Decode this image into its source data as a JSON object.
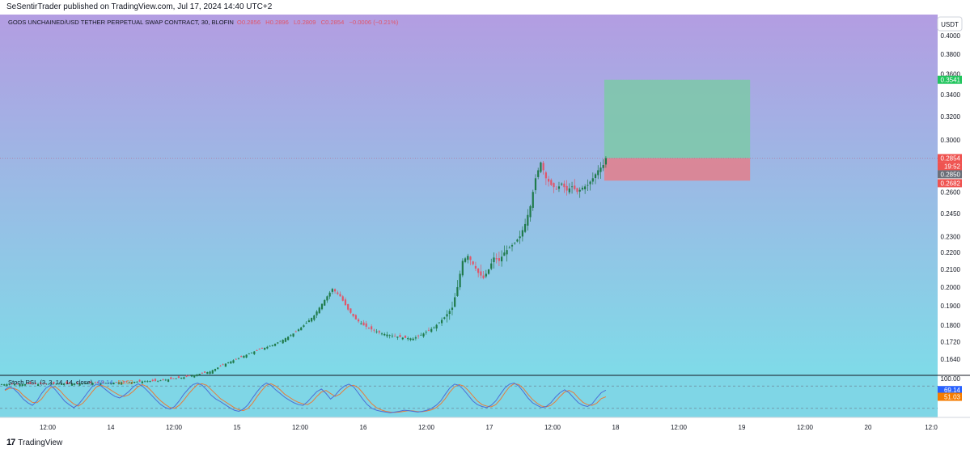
{
  "publisher_line": "SeSentirTrader published on TradingView.com, Jul 17, 2024 14:40 UTC+2",
  "footer": {
    "logo_glyph": "17",
    "brand": "TradingView"
  },
  "colors": {
    "bg_top": "#b39de2",
    "bg_bottom": "#7fdbe8",
    "candle_up": "#1f7a4a",
    "candle_down": "#e0566a",
    "profit_zone": "#7dc9a8",
    "loss_zone": "#e0828f",
    "price_line": "#b36b8e",
    "stoch_k": "#4a6fd8",
    "stoch_d": "#e87c3a",
    "tp_label_bg": "#22c55e",
    "price_label_bg": "#ef5350",
    "current_label_bg": "#6b6f78",
    "k_label_bg": "#2962ff",
    "d_label_bg": "#f57c00"
  },
  "chart_data": {
    "type": "candlestick",
    "header": {
      "symbol": "GODS UNCHAINED/USD TETHER PERPETUAL SWAP CONTRACT, 30, BLOFIN",
      "o": "O0.2856",
      "h": "H0.2896",
      "l": "L0.2809",
      "c": "C0.2854",
      "change": "−0.0006 (−0.21%)"
    },
    "currency_button": "USDT",
    "y_ticks": [
      "0.4000",
      "0.3800",
      "0.3600",
      "0.3400",
      "0.3200",
      "0.3000",
      "0.2800",
      "0.2600",
      "0.2450",
      "0.2300",
      "0.2200",
      "0.2100",
      "0.2000",
      "0.1900",
      "0.1800",
      "0.1720",
      "0.1640"
    ],
    "y_tick_values": [
      0.4,
      0.38,
      0.36,
      0.34,
      0.32,
      0.3,
      0.28,
      0.26,
      0.245,
      0.23,
      0.22,
      0.21,
      0.2,
      0.19,
      0.18,
      0.172,
      0.164
    ],
    "log_scale": true,
    "x_ticks": [
      "12:00",
      "14",
      "12:00",
      "15",
      "12:00",
      "16",
      "12:00",
      "17",
      "12:00",
      "18",
      "12:00",
      "19",
      "12:00",
      "20",
      "12:0"
    ],
    "x_tick_index": [
      0,
      1,
      2,
      3,
      4,
      5,
      6,
      7,
      8,
      9,
      10,
      11,
      12,
      13,
      14
    ],
    "ohlc_points": [
      [
        0,
        0.153
      ],
      [
        20,
        0.1532
      ],
      [
        40,
        0.1536
      ],
      [
        60,
        0.1545
      ],
      [
        70,
        0.156
      ],
      [
        80,
        0.1585
      ],
      [
        86,
        0.162
      ],
      [
        92,
        0.165
      ],
      [
        98,
        0.168
      ],
      [
        104,
        0.1705
      ],
      [
        108,
        0.173
      ],
      [
        112,
        0.176
      ],
      [
        116,
        0.18
      ],
      [
        120,
        0.185
      ],
      [
        124,
        0.193
      ],
      [
        127,
        0.199
      ],
      [
        130,
        0.195
      ],
      [
        133,
        0.188
      ],
      [
        136,
        0.183
      ],
      [
        139,
        0.18
      ],
      [
        142,
        0.178
      ],
      [
        146,
        0.176
      ],
      [
        150,
        0.175
      ],
      [
        154,
        0.174
      ],
      [
        158,
        0.1735
      ],
      [
        162,
        0.176
      ],
      [
        166,
        0.179
      ],
      [
        170,
        0.184
      ],
      [
        173,
        0.189
      ],
      [
        175,
        0.2
      ],
      [
        177,
        0.215
      ],
      [
        179,
        0.218
      ],
      [
        181,
        0.213
      ],
      [
        183,
        0.208
      ],
      [
        185,
        0.205
      ],
      [
        187,
        0.21
      ],
      [
        189,
        0.217
      ],
      [
        191,
        0.215
      ],
      [
        193,
        0.22
      ],
      [
        195,
        0.223
      ],
      [
        197,
        0.226
      ],
      [
        199,
        0.23
      ],
      [
        201,
        0.238
      ],
      [
        203,
        0.25
      ],
      [
        205,
        0.27
      ],
      [
        207,
        0.282
      ],
      [
        209,
        0.27
      ],
      [
        211,
        0.265
      ],
      [
        213,
        0.262
      ],
      [
        215,
        0.266
      ],
      [
        217,
        0.261
      ],
      [
        219,
        0.264
      ],
      [
        221,
        0.26
      ],
      [
        223,
        0.263
      ],
      [
        225,
        0.265
      ],
      [
        227,
        0.27
      ],
      [
        229,
        0.276
      ],
      [
        231,
        0.28
      ],
      [
        232,
        0.2854
      ]
    ],
    "x_total": 360,
    "x_last_candle": 232,
    "last_price": 0.2854,
    "price_labels": {
      "take_profit": "0.3541",
      "last": "0.2854",
      "countdown": "19:52",
      "current": "0.2850",
      "stop_loss": "0.2682"
    },
    "position": {
      "entry": 0.2854,
      "take_profit": 0.3541,
      "stop_loss": 0.2682,
      "x_start": 232,
      "x_end": 288
    },
    "indicator": {
      "name": "Stoch RSI",
      "params": "(3, 3, 14, 14, close)",
      "k_value": "69.14",
      "d_value": "51.03",
      "levels": [
        "100.00"
      ],
      "upper_band": 80,
      "lower_band": 20,
      "k": [
        70,
        78,
        72,
        60,
        45,
        35,
        28,
        40,
        60,
        75,
        82,
        70,
        55,
        40,
        30,
        22,
        30,
        45,
        62,
        78,
        85,
        80,
        70,
        60,
        52,
        48,
        55,
        65,
        78,
        86,
        80,
        68,
        55,
        42,
        30,
        22,
        18,
        25,
        40,
        58,
        72,
        84,
        88,
        82,
        70,
        55,
        45,
        38,
        30,
        22,
        15,
        12,
        18,
        30,
        48,
        65,
        80,
        88,
        82,
        70,
        60,
        50,
        42,
        35,
        30,
        28,
        38,
        52,
        65,
        72,
        60,
        45,
        55,
        70,
        80,
        85,
        78,
        62,
        45,
        30,
        20,
        15,
        12,
        10,
        8,
        10,
        12,
        15,
        14,
        12,
        10,
        12,
        15,
        20,
        28,
        40,
        58,
        75,
        85,
        82,
        70,
        55,
        40,
        30,
        25,
        22,
        28,
        40,
        58,
        75,
        85,
        88,
        80,
        65,
        48,
        35,
        28,
        22,
        25,
        35,
        50,
        62,
        70,
        62,
        48,
        35,
        28,
        25,
        32,
        48,
        62,
        69
      ],
      "d": [
        68,
        74,
        74,
        68,
        55,
        45,
        36,
        35,
        45,
        62,
        76,
        78,
        68,
        54,
        42,
        32,
        26,
        34,
        48,
        64,
        78,
        82,
        78,
        70,
        62,
        55,
        52,
        56,
        66,
        78,
        84,
        78,
        66,
        52,
        40,
        30,
        22,
        20,
        28,
        42,
        58,
        72,
        84,
        86,
        82,
        70,
        58,
        46,
        38,
        30,
        22,
        16,
        14,
        20,
        34,
        52,
        68,
        82,
        86,
        80,
        70,
        58,
        50,
        42,
        36,
        32,
        30,
        38,
        52,
        64,
        68,
        60,
        52,
        58,
        70,
        80,
        82,
        76,
        62,
        46,
        32,
        22,
        16,
        12,
        10,
        9,
        10,
        12,
        14,
        13,
        11,
        11,
        13,
        16,
        22,
        32,
        46,
        64,
        78,
        84,
        80,
        68,
        54,
        40,
        30,
        26,
        24,
        30,
        44,
        62,
        78,
        86,
        84,
        74,
        58,
        44,
        34,
        26,
        24,
        28,
        38,
        52,
        64,
        68,
        62,
        48,
        36,
        30,
        28,
        34,
        46,
        51
      ]
    }
  }
}
